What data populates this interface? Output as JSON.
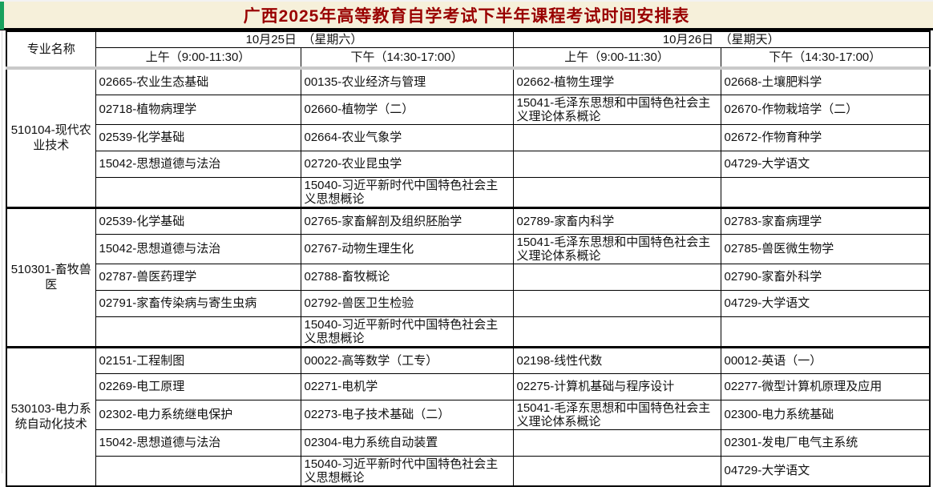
{
  "title": "广西2025年高等教育自学考试下半年课程考试时间安排表",
  "header": {
    "major_col": "专业名称",
    "days": [
      {
        "date": "10月25日　（星期六）",
        "sessions": [
          "上午（9:00-11:30）",
          "下午（14:30-17:00）"
        ]
      },
      {
        "date": "10月26日　（星期天）",
        "sessions": [
          "上午（9:00-11:30）",
          "下午（14:30-17:00）"
        ]
      }
    ]
  },
  "groups": [
    {
      "major": "510104-现代农业技术",
      "rows": [
        [
          "02665-农业生态基础",
          "00135-农业经济与管理",
          "02662-植物生理学",
          "02668-土壤肥料学"
        ],
        [
          "02718-植物病理学",
          "02660-植物学（二）",
          "15041-毛泽东思想和中国特色社会主义理论体系概论",
          "02670-作物栽培学（二）"
        ],
        [
          "02539-化学基础",
          "02664-农业气象学",
          "",
          "02672-作物育种学"
        ],
        [
          "15042-思想道德与法治",
          "02720-农业昆虫学",
          "",
          "04729-大学语文"
        ],
        [
          "",
          "15040-习近平新时代中国特色社会主义思想概论",
          "",
          ""
        ]
      ]
    },
    {
      "major": "510301-畜牧兽医",
      "rows": [
        [
          "02539-化学基础",
          "02765-家畜解剖及组织胚胎学",
          "02789-家畜内科学",
          "02783-家畜病理学"
        ],
        [
          "15042-思想道德与法治",
          "02767-动物生理生化",
          "15041-毛泽东思想和中国特色社会主义理论体系概论",
          "02785-兽医微生物学"
        ],
        [
          "02787-兽医药理学",
          "02788-畜牧概论",
          "",
          "02790-家畜外科学"
        ],
        [
          "02791-家畜传染病与寄生虫病",
          "02792-兽医卫生检验",
          "",
          "04729-大学语文"
        ],
        [
          "",
          "15040-习近平新时代中国特色社会主义思想概论",
          "",
          ""
        ]
      ]
    },
    {
      "major": "530103-电力系统自动化技术",
      "rows": [
        [
          "02151-工程制图",
          "00022-高等数学（工专）",
          "02198-线性代数",
          "00012-英语（一）"
        ],
        [
          "02269-电工原理",
          "02271-电机学",
          "02275-计算机基础与程序设计",
          "02277-微型计算机原理及应用"
        ],
        [
          "02302-电力系统继电保护",
          "02273-电子技术基础（二）",
          "15041-毛泽东思想和中国特色社会主义理论体系概论",
          "02300-电力系统基础"
        ],
        [
          "15042-思想道德与法治",
          "02304-电力系统自动装置",
          "",
          "02301-发电厂电气主系统"
        ],
        [
          "",
          "15040-习近平新时代中国特色社会主义思想概论",
          "",
          "04729-大学语文"
        ]
      ]
    }
  ],
  "colors": {
    "title_text": "#990000",
    "title_bg": "#f6f0da",
    "accent_green": "#18a15d",
    "grid_line": "#000000",
    "freeze_pane_line": "#c9c9c9"
  }
}
